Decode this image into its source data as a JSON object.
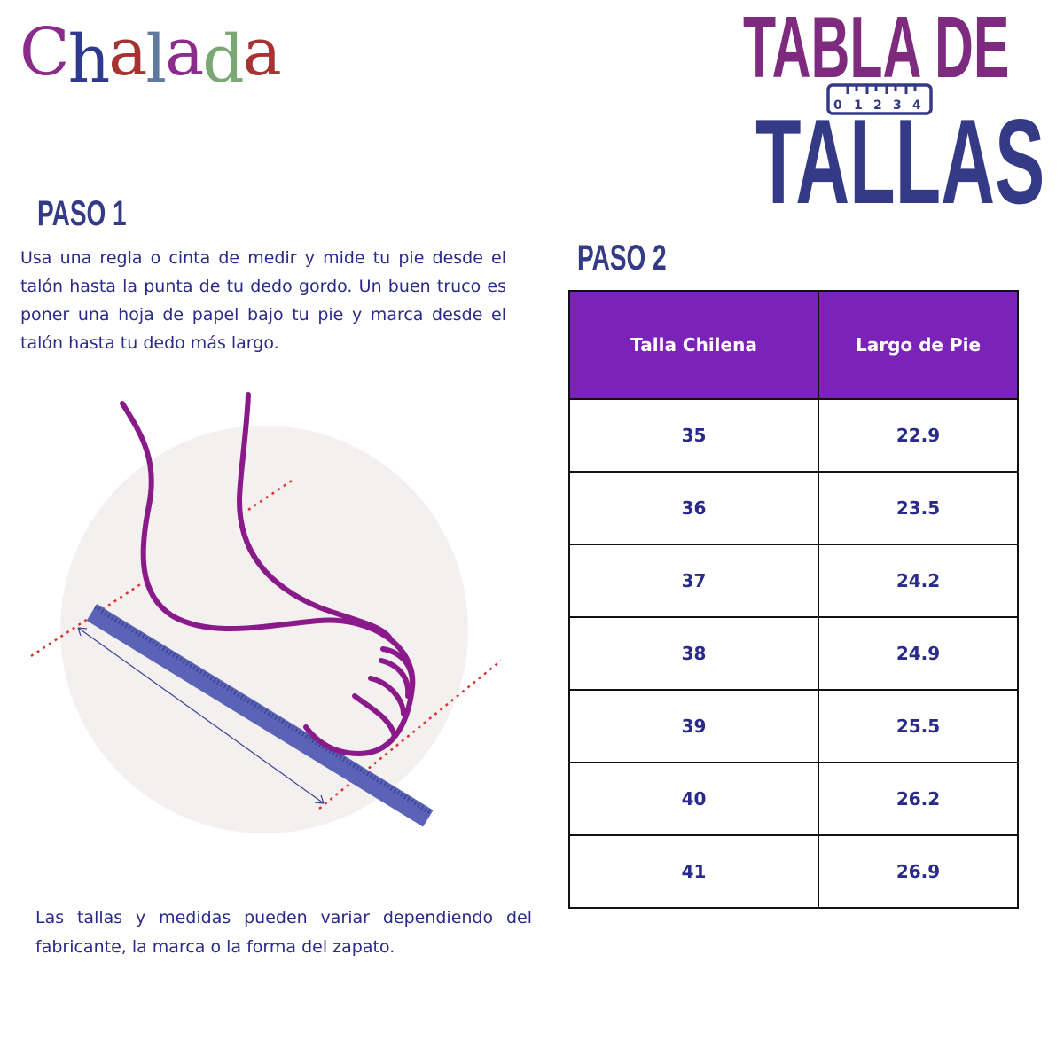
{
  "logo": {
    "text": "Chalada",
    "letters": [
      "C",
      "h",
      "a",
      "l",
      "a",
      "d",
      "a"
    ],
    "colors": [
      "#8b2b8c",
      "#2e3a8c",
      "#a83232",
      "#5f7aa0",
      "#8b2b8c",
      "#7aa874",
      "#a83232"
    ]
  },
  "title": {
    "line1": "TABLA DE",
    "line2": "TALLAS",
    "ruler_numbers": [
      "0",
      "1",
      "2",
      "3",
      "4"
    ],
    "color1": "#7e2a7f",
    "color2": "#343a85"
  },
  "step1": {
    "heading": "PASO 1",
    "text": "Usa una regla o cinta de medir y mide tu pie desde el talón hasta la punta de tu dedo gordo. Un buen truco es poner una hoja de papel bajo tu pie y marca desde el talón hasta tu dedo más largo."
  },
  "step2": {
    "heading": "PASO 2"
  },
  "note": "Las tallas y medidas pueden variar dependiendo del fabricante, la marca o la forma del zapato.",
  "table": {
    "headers": [
      "Talla Chilena",
      "Largo de Pie"
    ],
    "header_color": "#7b22b8",
    "rows": [
      [
        "35",
        "22.9"
      ],
      [
        "36",
        "23.5"
      ],
      [
        "37",
        "24.2"
      ],
      [
        "38",
        "24.9"
      ],
      [
        "39",
        "25.5"
      ],
      [
        "40",
        "26.2"
      ],
      [
        "41",
        "26.9"
      ]
    ]
  }
}
